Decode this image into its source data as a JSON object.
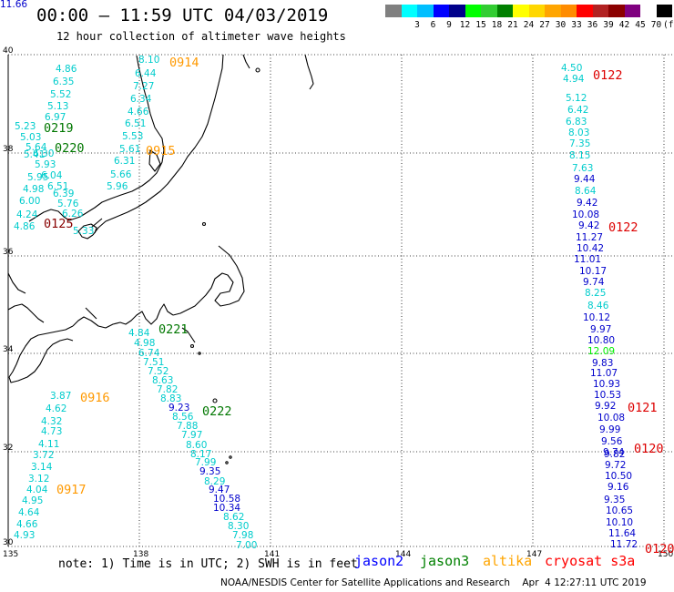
{
  "header": {
    "title": "00:00 – 11:59 UTC 04/03/2019",
    "subtitle": "12 hour collection of altimeter wave heights"
  },
  "color_scale": {
    "unit": "(ft)",
    "colors": [
      "#808080",
      "#00ffff",
      "#00bfff",
      "#0000ff",
      "#00008b",
      "#00ff00",
      "#32cd32",
      "#008000",
      "#ffff00",
      "#ffd700",
      "#ffa500",
      "#ff8c00",
      "#ff0000",
      "#b22222",
      "#8b0000",
      "#800080",
      "#ffffff",
      "#000000"
    ],
    "labels": [
      "",
      "3",
      "6",
      "9",
      "12",
      "15",
      "18",
      "21",
      "24",
      "27",
      "30",
      "33",
      "36",
      "39",
      "42",
      "45",
      "70",
      ""
    ]
  },
  "axes": {
    "lat_labels": [
      "40",
      "38",
      "36",
      "34",
      "32",
      "30"
    ],
    "lon_labels": [
      "135",
      "138",
      "141",
      "144",
      "147",
      "150"
    ]
  },
  "colors": {
    "c1": "#00cccc",
    "c2": "#0000cc",
    "gr": "#00ee00",
    "or": "#ff9900",
    "rd": "#dd0000",
    "dg": "#007700",
    "dr": "#880000"
  },
  "wave_values": [
    {
      "t": "8.10",
      "c": "c1"
    },
    {
      "t": "6.44",
      "c": "c1"
    },
    {
      "t": "7.27",
      "c": "c1"
    },
    {
      "t": "6.34",
      "c": "c1"
    },
    {
      "t": "4.66",
      "c": "c1"
    },
    {
      "t": "6.51",
      "c": "c1"
    },
    {
      "t": "5.53",
      "c": "c1"
    },
    {
      "t": "5.61",
      "c": "c1"
    },
    {
      "t": "6.31",
      "c": "c1"
    },
    {
      "t": "5.66",
      "c": "c1"
    },
    {
      "t": "5.96",
      "c": "c1"
    },
    {
      "t": "4.86",
      "c": "c1"
    },
    {
      "t": "6.35",
      "c": "c1"
    },
    {
      "t": "5.52",
      "c": "c1"
    },
    {
      "t": "5.13",
      "c": "c1"
    },
    {
      "t": "6.97",
      "c": "c1"
    },
    {
      "t": "5.23",
      "c": "c1"
    },
    {
      "t": "5.03",
      "c": "c1"
    },
    {
      "t": "5.64",
      "c": "c1"
    },
    {
      "t": "5.41",
      "c": "c1"
    },
    {
      "t": "6.30",
      "c": "c1"
    },
    {
      "t": "5.93",
      "c": "c1"
    },
    {
      "t": "6.04",
      "c": "c1"
    },
    {
      "t": "5.95",
      "c": "c1"
    },
    {
      "t": "6.51",
      "c": "c1"
    },
    {
      "t": "4.98",
      "c": "c1"
    },
    {
      "t": "6.39",
      "c": "c1"
    },
    {
      "t": "6.00",
      "c": "c1"
    },
    {
      "t": "5.76",
      "c": "c1"
    },
    {
      "t": "4.24",
      "c": "c1"
    },
    {
      "t": "6.26",
      "c": "c1"
    },
    {
      "t": "4.86",
      "c": "c1"
    },
    {
      "t": "5.33",
      "c": "c1"
    },
    {
      "t": "4.84",
      "c": "c1"
    },
    {
      "t": "4.98",
      "c": "c1"
    },
    {
      "t": "6.74",
      "c": "c1"
    },
    {
      "t": "7.51",
      "c": "c1"
    },
    {
      "t": "7.52",
      "c": "c1"
    },
    {
      "t": "8.63",
      "c": "c1"
    },
    {
      "t": "7.82",
      "c": "c1"
    },
    {
      "t": "8.83",
      "c": "c1"
    },
    {
      "t": "9.23",
      "c": "c2"
    },
    {
      "t": "8.56",
      "c": "c1"
    },
    {
      "t": "7.88",
      "c": "c1"
    },
    {
      "t": "7.97",
      "c": "c1"
    },
    {
      "t": "8.60",
      "c": "c1"
    },
    {
      "t": "8.17",
      "c": "c1"
    },
    {
      "t": "7.99",
      "c": "c1"
    },
    {
      "t": "9.35",
      "c": "c2"
    },
    {
      "t": "8.29",
      "c": "c1"
    },
    {
      "t": "9.47",
      "c": "c2"
    },
    {
      "t": "10.58",
      "c": "c2"
    },
    {
      "t": "10.34",
      "c": "c2"
    },
    {
      "t": "8.62",
      "c": "c1"
    },
    {
      "t": "8.30",
      "c": "c1"
    },
    {
      "t": "7.98",
      "c": "c1"
    },
    {
      "t": "7.00",
      "c": "c1"
    },
    {
      "t": "3.87",
      "c": "c1"
    },
    {
      "t": "4.62",
      "c": "c1"
    },
    {
      "t": "4.32",
      "c": "c1"
    },
    {
      "t": "4.73",
      "c": "c1"
    },
    {
      "t": "4.11",
      "c": "c1"
    },
    {
      "t": "3.72",
      "c": "c1"
    },
    {
      "t": "3.14",
      "c": "c1"
    },
    {
      "t": "3.12",
      "c": "c1"
    },
    {
      "t": "4.04",
      "c": "c1"
    },
    {
      "t": "4.95",
      "c": "c1"
    },
    {
      "t": "4.64",
      "c": "c1"
    },
    {
      "t": "4.66",
      "c": "c1"
    },
    {
      "t": "4.93",
      "c": "c1"
    },
    {
      "t": "4.50",
      "c": "c1"
    },
    {
      "t": "4.94",
      "c": "c1"
    },
    {
      "t": "5.12",
      "c": "c1"
    },
    {
      "t": "6.42",
      "c": "c1"
    },
    {
      "t": "6.83",
      "c": "c1"
    },
    {
      "t": "8.03",
      "c": "c1"
    },
    {
      "t": "7.35",
      "c": "c1"
    },
    {
      "t": "8.15",
      "c": "c1"
    },
    {
      "t": "7.63",
      "c": "c1"
    },
    {
      "t": "9.44",
      "c": "c2"
    },
    {
      "t": "8.64",
      "c": "c1"
    },
    {
      "t": "9.42",
      "c": "c2"
    },
    {
      "t": "10.08",
      "c": "c2"
    },
    {
      "t": "9.42",
      "c": "c2"
    },
    {
      "t": "11.27",
      "c": "c2"
    },
    {
      "t": "10.42",
      "c": "c2"
    },
    {
      "t": "11.01",
      "c": "c2"
    },
    {
      "t": "10.17",
      "c": "c2"
    },
    {
      "t": "9.74",
      "c": "c2"
    },
    {
      "t": "8.25",
      "c": "c1"
    },
    {
      "t": "8.46",
      "c": "c1"
    },
    {
      "t": "10.12",
      "c": "c2"
    },
    {
      "t": "9.97",
      "c": "c2"
    },
    {
      "t": "10.80",
      "c": "c2"
    },
    {
      "t": "12.09",
      "c": "gr"
    },
    {
      "t": "9.83",
      "c": "c2"
    },
    {
      "t": "11.07",
      "c": "c2"
    },
    {
      "t": "10.93",
      "c": "c2"
    },
    {
      "t": "10.53",
      "c": "c2"
    },
    {
      "t": "9.92",
      "c": "c2"
    },
    {
      "t": "10.08",
      "c": "c2"
    },
    {
      "t": "9.99",
      "c": "c2"
    },
    {
      "t": "9.56",
      "c": "c2"
    },
    {
      "t": "9.74",
      "c": "c2"
    },
    {
      "t": "9.82",
      "c": "c2"
    },
    {
      "t": "9.72",
      "c": "c2"
    },
    {
      "t": "10.50",
      "c": "c2"
    },
    {
      "t": "9.16",
      "c": "c2"
    },
    {
      "t": "9.35",
      "c": "c2"
    },
    {
      "t": "10.65",
      "c": "c2"
    },
    {
      "t": "10.10",
      "c": "c2"
    },
    {
      "t": "11.64",
      "c": "c2"
    },
    {
      "t": "11.72",
      "c": "c2"
    },
    {
      "t": "11.66",
      "c": "c2"
    }
  ],
  "pass_times": [
    {
      "t": "0914",
      "c": "or"
    },
    {
      "t": "0915",
      "c": "or"
    },
    {
      "t": "0916",
      "c": "or"
    },
    {
      "t": "0917",
      "c": "or"
    },
    {
      "t": "0219",
      "c": "dg"
    },
    {
      "t": "0220",
      "c": "dg"
    },
    {
      "t": "0221",
      "c": "dg"
    },
    {
      "t": "0222",
      "c": "dg"
    },
    {
      "t": "0125",
      "c": "dr"
    },
    {
      "t": "0122",
      "c": "rd"
    },
    {
      "t": "0122",
      "c": "rd"
    },
    {
      "t": "0121",
      "c": "rd"
    },
    {
      "t": "0120",
      "c": "rd"
    },
    {
      "t": "0120",
      "c": "rd"
    }
  ],
  "footer": {
    "note": "note: 1) Time is in UTC; 2) SWH is in feet",
    "satellites": [
      {
        "name": "jason2",
        "color": "#0000ff"
      },
      {
        "name": "jason3",
        "color": "#008000"
      },
      {
        "name": "altika",
        "color": "#ffa500"
      },
      {
        "name": "cryosat s3a",
        "color": "#ff0000"
      }
    ],
    "credit": "NOAA/NESDIS Center for Satellite Applications and Research    Apr  4 12:27:11 UTC 2019"
  }
}
